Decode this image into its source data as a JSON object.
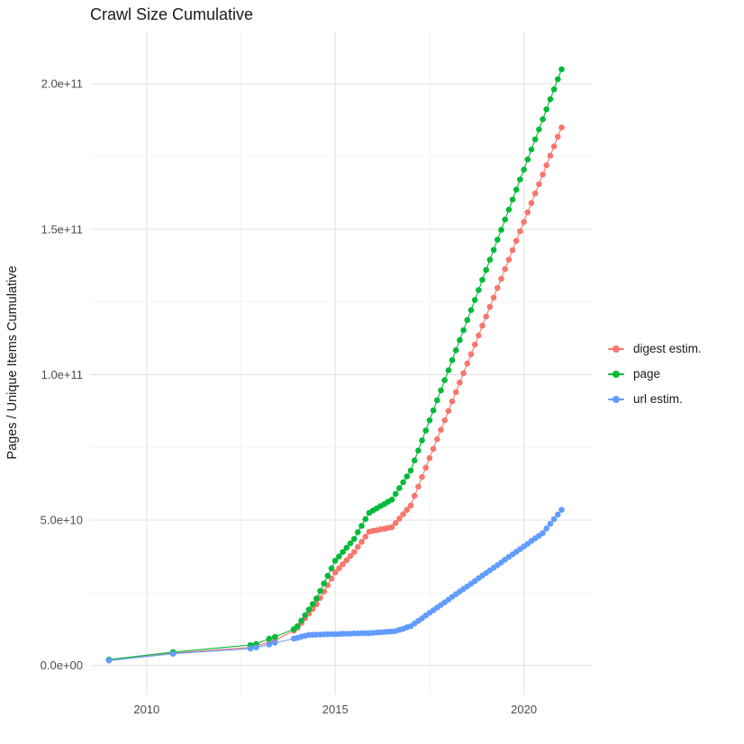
{
  "chart_data": {
    "type": "scatter",
    "title": "Crawl Size Cumulative",
    "xlabel": "",
    "ylabel": "Pages / Unique Items Cumulative",
    "legend_position": "right",
    "grid": true,
    "background": "#ffffff",
    "major_grid_color": "#e4e4e4",
    "minor_grid_color": "#f1f1f1",
    "tick_label_color": "#4d4d4d",
    "y_value_unit": "1e9 (billions of pages / unique items)",
    "xlim": [
      2008.5,
      2021.8
    ],
    "ylim_e9": [
      -10,
      218
    ],
    "x_ticks": {
      "values": [
        2010,
        2015,
        2020
      ],
      "labels": [
        "2010",
        "2015",
        "2020"
      ]
    },
    "y_ticks": {
      "values": [
        0,
        50,
        100,
        150,
        200
      ],
      "labels": [
        "0.0e+00",
        "5.0e+10",
        "1.0e+11",
        "1.5e+11",
        "2.0e+11"
      ]
    },
    "x_minor_ticks": [
      2012.5,
      2017.5
    ],
    "y_minor_ticks": [
      25,
      75,
      125,
      175
    ],
    "x": [
      2009.0,
      2010.7,
      2012.75,
      2012.9,
      2013.25,
      2013.4,
      2013.9,
      2014.0,
      2014.1,
      2014.2,
      2014.3,
      2014.4,
      2014.5,
      2014.6,
      2014.7,
      2014.8,
      2014.9,
      2015.0,
      2015.1,
      2015.2,
      2015.3,
      2015.4,
      2015.5,
      2015.6,
      2015.7,
      2015.8,
      2015.9,
      2016.0,
      2016.1,
      2016.2,
      2016.3,
      2016.4,
      2016.5,
      2016.6,
      2016.7,
      2016.8,
      2016.9,
      2017.0,
      2017.1,
      2017.2,
      2017.3,
      2017.4,
      2017.5,
      2017.6,
      2017.7,
      2017.8,
      2017.9,
      2018.0,
      2018.1,
      2018.2,
      2018.3,
      2018.4,
      2018.5,
      2018.6,
      2018.7,
      2018.8,
      2018.9,
      2019.0,
      2019.1,
      2019.2,
      2019.3,
      2019.4,
      2019.5,
      2019.6,
      2019.7,
      2019.8,
      2019.9,
      2020.0,
      2020.1,
      2020.2,
      2020.3,
      2020.4,
      2020.5,
      2020.6,
      2020.7,
      2020.8,
      2020.9,
      2021.0
    ],
    "series": [
      {
        "name": "digest estim.",
        "color": "#F8766D",
        "y_e9": [
          1.8,
          4.2,
          6.2,
          6.6,
          8.0,
          8.6,
          12.0,
          13.0,
          14.6,
          16.2,
          17.8,
          19.4,
          21.0,
          23.2,
          25.4,
          27.6,
          29.8,
          32.0,
          33.4,
          34.8,
          36.2,
          37.6,
          39.0,
          40.8,
          42.5,
          44.3,
          46.0,
          46.3,
          46.5,
          46.8,
          47.0,
          47.3,
          47.5,
          49.0,
          50.5,
          52.0,
          53.5,
          55.0,
          58.3,
          61.5,
          64.8,
          68.0,
          71.3,
          74.5,
          77.8,
          81.0,
          84.3,
          87.5,
          90.8,
          94.0,
          97.3,
          100.5,
          103.8,
          107.0,
          110.3,
          113.5,
          116.8,
          120.0,
          123.3,
          126.5,
          129.8,
          133.0,
          136.3,
          139.5,
          142.8,
          146.0,
          149.3,
          152.5,
          155.8,
          159.0,
          162.3,
          165.5,
          168.8,
          172.0,
          175.3,
          178.5,
          181.8,
          185.0
        ]
      },
      {
        "name": "page",
        "color": "#00BA38",
        "y_e9": [
          2.0,
          4.6,
          7.0,
          7.4,
          9.2,
          9.8,
          12.5,
          13.5,
          15.4,
          17.3,
          19.2,
          21.1,
          23.0,
          25.6,
          28.2,
          30.8,
          33.4,
          36.0,
          37.5,
          39.0,
          40.5,
          42.0,
          43.5,
          45.8,
          48.0,
          50.3,
          52.5,
          53.3,
          54.0,
          54.8,
          55.5,
          56.3,
          57.0,
          59.0,
          61.0,
          63.0,
          65.0,
          67.0,
          70.5,
          73.9,
          77.4,
          80.8,
          84.3,
          87.7,
          91.2,
          94.6,
          98.1,
          101.5,
          105.0,
          108.4,
          111.9,
          115.3,
          118.8,
          122.2,
          125.7,
          129.1,
          132.6,
          136.0,
          139.5,
          142.9,
          146.4,
          149.8,
          153.3,
          156.7,
          160.2,
          163.6,
          167.1,
          170.5,
          174.0,
          177.4,
          180.9,
          184.3,
          187.8,
          191.2,
          194.7,
          198.1,
          201.6,
          205.0
        ]
      },
      {
        "name": "url estim.",
        "color": "#619CFF",
        "y_e9": [
          1.7,
          4.0,
          5.8,
          6.2,
          7.2,
          7.8,
          9.2,
          9.5,
          9.9,
          10.2,
          10.5,
          10.5,
          10.6,
          10.6,
          10.7,
          10.7,
          10.8,
          10.8,
          10.8,
          10.9,
          10.9,
          10.9,
          11.0,
          11.0,
          11.1,
          11.1,
          11.1,
          11.2,
          11.3,
          11.4,
          11.5,
          11.6,
          11.7,
          11.8,
          12.2,
          12.6,
          13.1,
          13.5,
          14.4,
          15.3,
          16.2,
          17.2,
          18.1,
          19.0,
          19.9,
          20.8,
          21.7,
          22.6,
          23.6,
          24.5,
          25.4,
          26.3,
          27.2,
          28.1,
          29.0,
          30.0,
          30.9,
          31.8,
          32.7,
          33.6,
          34.5,
          35.4,
          36.4,
          37.3,
          38.2,
          39.1,
          40.0,
          40.9,
          41.8,
          42.8,
          43.7,
          44.6,
          45.5,
          47.1,
          48.7,
          50.3,
          51.9,
          53.5
        ]
      }
    ]
  }
}
